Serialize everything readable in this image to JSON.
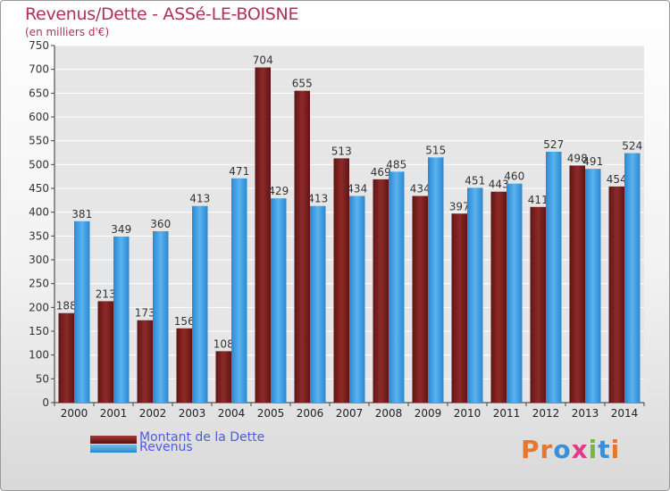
{
  "chart_data": {
    "type": "bar",
    "title": "Revenus/Dette - ASSé-LE-BOISNE",
    "subtitle": "(en milliers d'€)",
    "categories": [
      "2000",
      "2001",
      "2002",
      "2003",
      "2004",
      "2005",
      "2006",
      "2007",
      "2008",
      "2009",
      "2010",
      "2011",
      "2012",
      "2013",
      "2014"
    ],
    "series": [
      {
        "name": "Montant de la Dette",
        "color": "#7a1e1e",
        "values": [
          188,
          213,
          173,
          156,
          108,
          704,
          655,
          513,
          469,
          434,
          397,
          443,
          411,
          498,
          454
        ]
      },
      {
        "name": "Revenus",
        "color": "#3a9de0",
        "values": [
          381,
          349,
          360,
          413,
          471,
          429,
          413,
          434,
          485,
          515,
          451,
          460,
          527,
          491,
          524
        ]
      }
    ],
    "ylim": [
      0,
      750
    ],
    "yticks": [
      0,
      50,
      100,
      150,
      200,
      250,
      300,
      350,
      400,
      450,
      500,
      550,
      600,
      650,
      700,
      750
    ],
    "grid": true,
    "legend": "bottom-left"
  },
  "logo": {
    "text": "Proxiti",
    "colors": [
      "#e8762b",
      "#e8762b",
      "#3b8fd9",
      "#e03a8c",
      "#7ab83c",
      "#3b8fd9",
      "#e8762b"
    ]
  }
}
